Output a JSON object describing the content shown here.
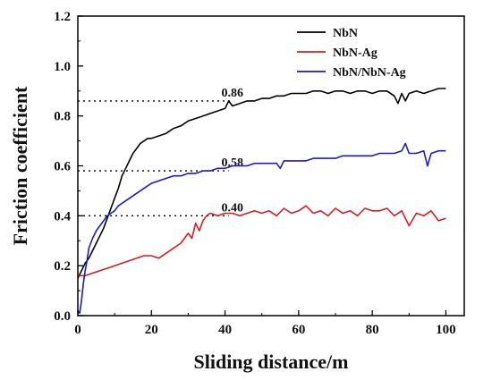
{
  "chart_data": {
    "type": "line",
    "title": "",
    "xlabel": "Sliding distance/m",
    "ylabel": "Friction coefficient",
    "xlim": [
      0,
      105
    ],
    "ylim": [
      0,
      1.2
    ],
    "xticks": [
      0,
      20,
      40,
      60,
      80,
      100
    ],
    "yticks": [
      0.0,
      0.2,
      0.4,
      0.6,
      0.8,
      1.0,
      1.2
    ],
    "x_tick_labels": [
      "0",
      "20",
      "40",
      "60",
      "80",
      "100"
    ],
    "y_tick_labels": [
      "0.0",
      "0.2",
      "0.4",
      "0.6",
      "0.8",
      "1.0",
      "1.2"
    ],
    "grid": false,
    "legend_position": "top-right",
    "series": [
      {
        "name": "NbN",
        "color": "#000000",
        "x": [
          0,
          1,
          2,
          3,
          4,
          5,
          6,
          7,
          8,
          9,
          10,
          11,
          12,
          13,
          14,
          15,
          16,
          17,
          18,
          19,
          20,
          22,
          24,
          26,
          28,
          30,
          32,
          34,
          36,
          38,
          40,
          41,
          42,
          44,
          46,
          48,
          50,
          52,
          54,
          56,
          58,
          60,
          62,
          64,
          66,
          68,
          70,
          72,
          74,
          76,
          78,
          80,
          82,
          84,
          86,
          87,
          88,
          89,
          90,
          92,
          94,
          96,
          98,
          100
        ],
        "y": [
          0.15,
          0.18,
          0.21,
          0.23,
          0.26,
          0.29,
          0.32,
          0.35,
          0.39,
          0.43,
          0.47,
          0.51,
          0.56,
          0.59,
          0.62,
          0.65,
          0.67,
          0.69,
          0.7,
          0.71,
          0.71,
          0.72,
          0.73,
          0.75,
          0.76,
          0.78,
          0.79,
          0.8,
          0.81,
          0.82,
          0.83,
          0.86,
          0.84,
          0.85,
          0.86,
          0.86,
          0.87,
          0.87,
          0.88,
          0.88,
          0.89,
          0.89,
          0.89,
          0.9,
          0.9,
          0.89,
          0.9,
          0.9,
          0.89,
          0.9,
          0.9,
          0.89,
          0.9,
          0.9,
          0.88,
          0.85,
          0.89,
          0.86,
          0.89,
          0.9,
          0.89,
          0.9,
          0.91,
          0.91
        ]
      },
      {
        "name": "NbN-Ag",
        "color": "#d42020",
        "x": [
          0,
          2,
          4,
          6,
          8,
          10,
          12,
          14,
          16,
          18,
          20,
          22,
          24,
          26,
          28,
          30,
          31,
          32,
          33,
          34,
          35,
          36,
          38,
          40,
          42,
          44,
          46,
          48,
          50,
          52,
          54,
          56,
          58,
          60,
          62,
          64,
          66,
          68,
          70,
          72,
          74,
          76,
          78,
          80,
          82,
          84,
          86,
          88,
          90,
          92,
          94,
          96,
          98,
          100
        ],
        "y": [
          0.16,
          0.16,
          0.17,
          0.18,
          0.19,
          0.2,
          0.21,
          0.22,
          0.23,
          0.24,
          0.24,
          0.23,
          0.25,
          0.27,
          0.29,
          0.33,
          0.31,
          0.37,
          0.34,
          0.38,
          0.4,
          0.41,
          0.4,
          0.41,
          0.41,
          0.4,
          0.41,
          0.42,
          0.41,
          0.42,
          0.4,
          0.43,
          0.41,
          0.42,
          0.44,
          0.41,
          0.42,
          0.4,
          0.43,
          0.41,
          0.42,
          0.4,
          0.43,
          0.42,
          0.42,
          0.43,
          0.4,
          0.42,
          0.36,
          0.41,
          0.4,
          0.42,
          0.38,
          0.39
        ]
      },
      {
        "name": "NbN/NbN-Ag",
        "color": "#1c1cc4",
        "x": [
          0,
          0.5,
          1,
          1.5,
          2,
          2.5,
          3,
          4,
          5,
          6,
          7,
          8,
          9,
          10,
          11,
          12,
          14,
          16,
          18,
          20,
          22,
          24,
          26,
          28,
          30,
          32,
          34,
          36,
          38,
          40,
          42,
          44,
          46,
          48,
          50,
          52,
          54,
          55,
          56,
          58,
          60,
          62,
          64,
          66,
          68,
          70,
          72,
          74,
          76,
          78,
          80,
          82,
          84,
          86,
          88,
          89,
          90,
          92,
          94,
          95,
          96,
          98,
          100
        ],
        "y": [
          0.02,
          0.01,
          0.06,
          0.13,
          0.18,
          0.22,
          0.27,
          0.31,
          0.34,
          0.36,
          0.38,
          0.4,
          0.41,
          0.42,
          0.44,
          0.45,
          0.47,
          0.49,
          0.51,
          0.53,
          0.54,
          0.55,
          0.56,
          0.56,
          0.57,
          0.57,
          0.58,
          0.58,
          0.59,
          0.59,
          0.6,
          0.6,
          0.6,
          0.61,
          0.61,
          0.61,
          0.61,
          0.59,
          0.62,
          0.62,
          0.62,
          0.62,
          0.63,
          0.63,
          0.63,
          0.63,
          0.64,
          0.64,
          0.64,
          0.64,
          0.64,
          0.65,
          0.65,
          0.65,
          0.66,
          0.69,
          0.65,
          0.65,
          0.66,
          0.6,
          0.65,
          0.66,
          0.66
        ]
      }
    ],
    "reference_lines": [
      {
        "y": 0.86,
        "x_start": 0,
        "x_end": 42,
        "label": "0.86",
        "label_x": 39
      },
      {
        "y": 0.58,
        "x_start": 0,
        "x_end": 41,
        "label": "0.58",
        "label_x": 39
      },
      {
        "y": 0.4,
        "x_start": 0,
        "x_end": 41,
        "label": "0.40",
        "label_x": 39
      }
    ]
  }
}
